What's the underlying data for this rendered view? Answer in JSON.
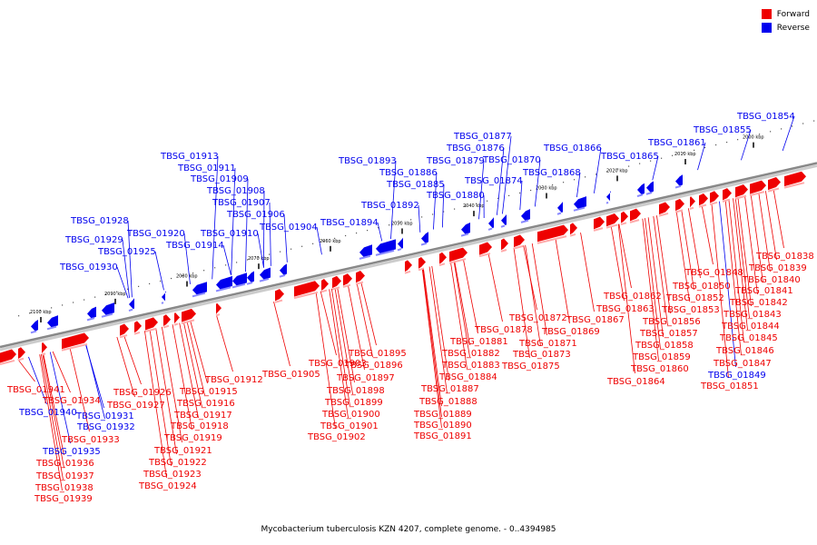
{
  "legend": {
    "forward": {
      "label": "Forward",
      "color": "#ee0000"
    },
    "reverse": {
      "label": "Reverse",
      "color": "#0000ee"
    }
  },
  "caption": "Mycobacterium tuberculosis KZN 4207, complete genome. - 0..4394985",
  "colors": {
    "forward": "#ee0000",
    "reverse": "#0000ee",
    "axis": "#888888",
    "guide": "#aaaaaa"
  },
  "ticks": [
    "2000 kbp",
    "2010 kbp",
    "2020 kbp",
    "2030 kbp",
    "2040 kbp",
    "2050 kbp",
    "2060 kbp",
    "2070 kbp",
    "2080 kbp",
    "2090 kbp",
    "2100 kbp"
  ],
  "labels_reverse_above": [
    "TBSG_01854",
    "TBSG_01855",
    "TBSG_01861",
    "TBSG_01865",
    "TBSG_01866",
    "TBSG_01868",
    "TBSG_01870",
    "TBSG_01874",
    "TBSG_01877",
    "TBSG_01876",
    "TBSG_01879",
    "TBSG_01880",
    "TBSG_01893",
    "TBSG_01886",
    "TBSG_01885",
    "TBSG_01892",
    "TBSG_01894",
    "TBSG_01913",
    "TBSG_01911",
    "TBSG_01909",
    "TBSG_01908",
    "TBSG_01907",
    "TBSG_01906",
    "TBSG_01910",
    "TBSG_01904",
    "TBSG_01914",
    "TBSG_01920",
    "TBSG_01928",
    "TBSG_01929",
    "TBSG_01925",
    "TBSG_01930"
  ],
  "labels_forward_below": [
    "TBSG_01838",
    "TBSG_01839",
    "TBSG_01840",
    "TBSG_01841",
    "TBSG_01842",
    "TBSG_01843",
    "TBSG_01844",
    "TBSG_01845",
    "TBSG_01846",
    "TBSG_01847",
    "TBSG_01848",
    "TBSG_01850",
    "TBSG_01851",
    "TBSG_01852",
    "TBSG_01853",
    "TBSG_01856",
    "TBSG_01857",
    "TBSG_01858",
    "TBSG_01859",
    "TBSG_01860",
    "TBSG_01862",
    "TBSG_01863",
    "TBSG_01864",
    "TBSG_01867",
    "TBSG_01869",
    "TBSG_01871",
    "TBSG_01872",
    "TBSG_01873",
    "TBSG_01875",
    "TBSG_01878",
    "TBSG_01881",
    "TBSG_01882",
    "TBSG_01883",
    "TBSG_01884",
    "TBSG_01887",
    "TBSG_01888",
    "TBSG_01889",
    "TBSG_01890",
    "TBSG_01891",
    "TBSG_01895",
    "TBSG_01896",
    "TBSG_01897",
    "TBSG_01898",
    "TBSG_01899",
    "TBSG_01900",
    "TBSG_01901",
    "TBSG_01902",
    "TBSG_01903",
    "TBSG_01905",
    "TBSG_01912",
    "TBSG_01915",
    "TBSG_01916",
    "TBSG_01917",
    "TBSG_01918",
    "TBSG_01919",
    "TBSG_01921",
    "TBSG_01922",
    "TBSG_01923",
    "TBSG_01924",
    "TBSG_01926",
    "TBSG_01927",
    "TBSG_01933",
    "TBSG_01934",
    "TBSG_01936",
    "TBSG_01937",
    "TBSG_01938",
    "TBSG_01939",
    "TBSG_01941"
  ],
  "labels_reverse_below": [
    "TBSG_01849",
    "TBSG_01931",
    "TBSG_01932",
    "TBSG_01935",
    "TBSG_01940"
  ]
}
